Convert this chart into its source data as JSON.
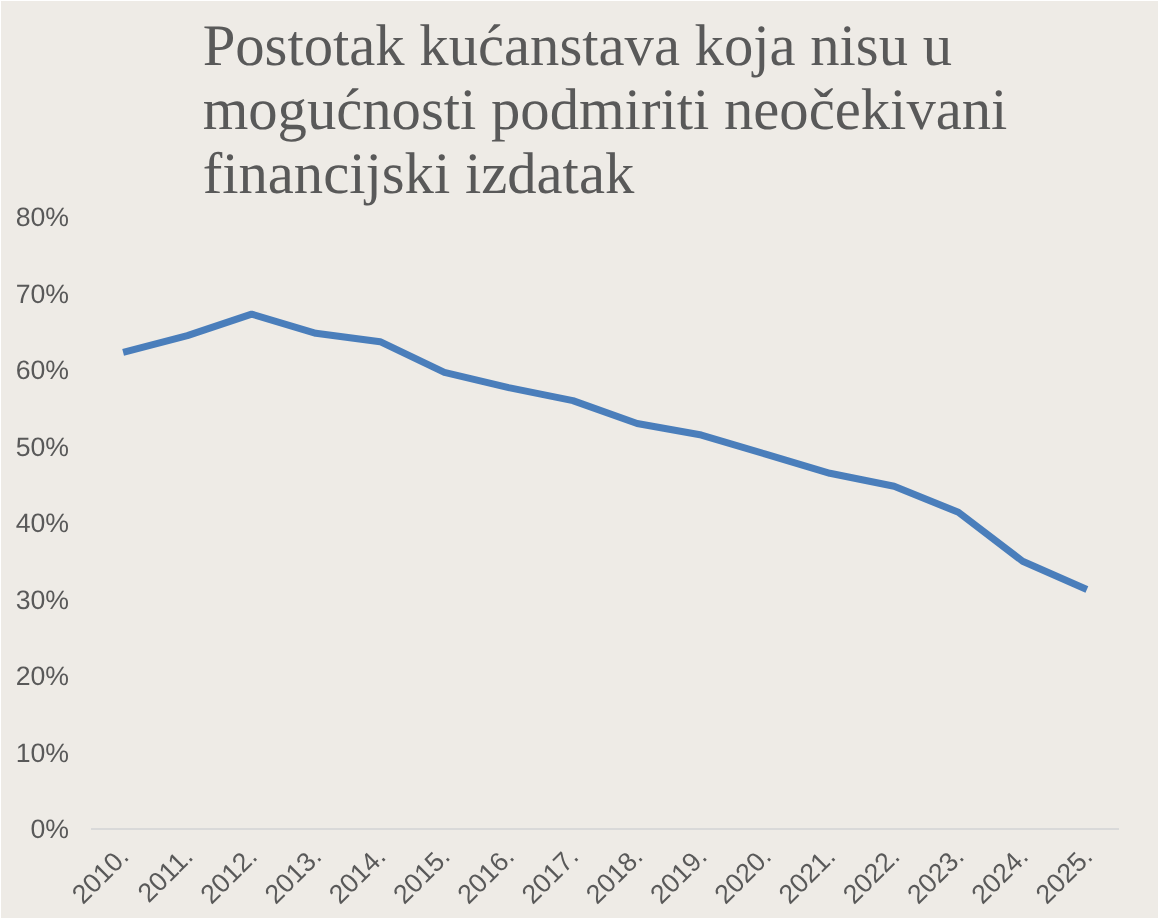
{
  "chart_data": {
    "type": "line",
    "title": "Postotak kućanstava koja nisu u mogućnosti podmiriti neočekivani financijski izdatak",
    "categories": [
      "2010.",
      "2011.",
      "2012.",
      "2013.",
      "2014.",
      "2015.",
      "2016.",
      "2017.",
      "2018.",
      "2019.",
      "2020.",
      "2021.",
      "2022.",
      "2023.",
      "2024.",
      "2025."
    ],
    "series": [
      {
        "color": "#4a7ebb",
        "values": [
          62.3,
          64.5,
          67.3,
          64.8,
          63.7,
          59.7,
          57.7,
          56,
          53,
          51.5,
          49,
          46.5,
          44.8,
          41.4,
          35,
          31.3
        ]
      }
    ],
    "ylim": [
      0,
      80
    ],
    "yticks": [
      {
        "value": 0,
        "label": "0%"
      },
      {
        "value": 10,
        "label": "10%"
      },
      {
        "value": 20,
        "label": "20%"
      },
      {
        "value": 30,
        "label": "30%"
      },
      {
        "value": 40,
        "label": "40%"
      },
      {
        "value": 50,
        "label": "50%"
      },
      {
        "value": 60,
        "label": "60%"
      },
      {
        "value": 70,
        "label": "70%"
      },
      {
        "value": 80,
        "label": "80%"
      }
    ],
    "grid": false,
    "marker": "none",
    "line_style": "solid"
  }
}
